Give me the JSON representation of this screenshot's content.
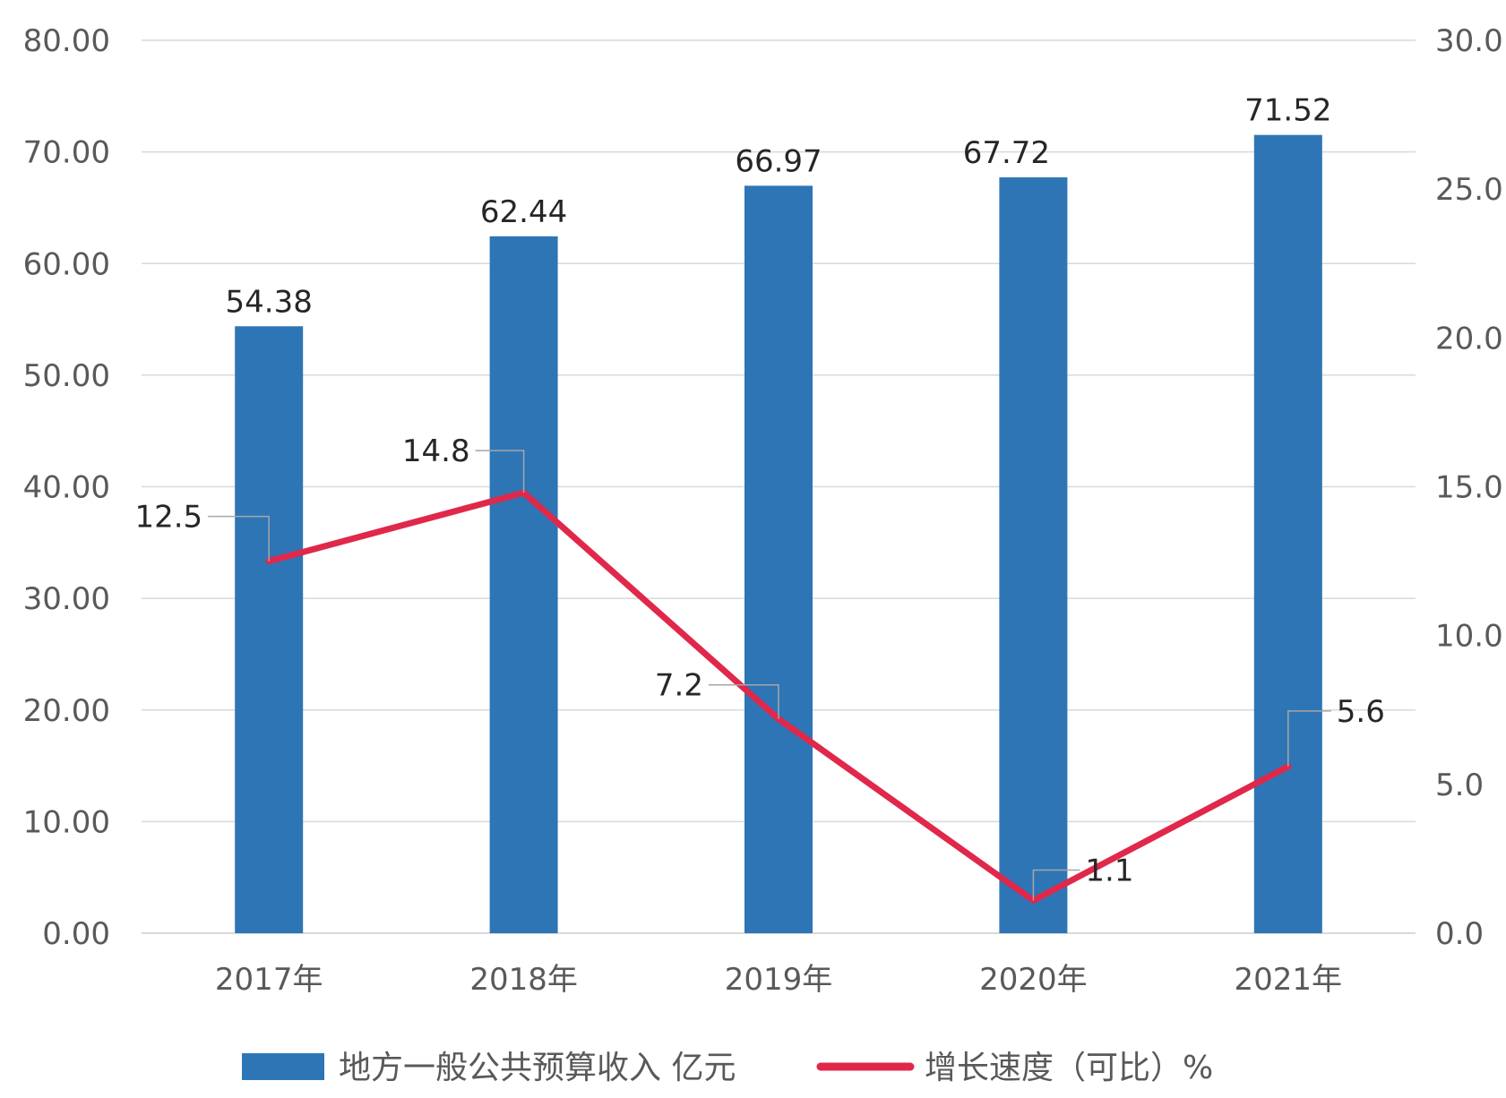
{
  "chart_data": {
    "type": "bar",
    "categories": [
      "2017年",
      "2018年",
      "2019年",
      "2020年",
      "2021年"
    ],
    "series": [
      {
        "name": "地方一般公共预算收入 亿元",
        "type": "bar",
        "axis": "left",
        "values": [
          54.38,
          62.44,
          66.97,
          67.72,
          71.52
        ],
        "labels": [
          "54.38",
          "62.44",
          "66.97",
          "67.72",
          "71.52"
        ],
        "color": "#2E75B6"
      },
      {
        "name": "增长速度（可比）%",
        "type": "line",
        "axis": "right",
        "values": [
          12.5,
          14.8,
          7.2,
          1.1,
          5.6
        ],
        "labels": [
          "12.5",
          "14.8",
          "7.2",
          "1.1",
          "5.6"
        ],
        "color": "#E0284A"
      }
    ],
    "y_left": {
      "min": 0,
      "max": 80,
      "ticks": [
        "0.00",
        "10.00",
        "20.00",
        "30.00",
        "40.00",
        "50.00",
        "60.00",
        "70.00",
        "80.00"
      ]
    },
    "y_right": {
      "min": 0,
      "max": 30,
      "ticks": [
        "0.0",
        "5.0",
        "10.0",
        "15.0",
        "20.0",
        "25.0",
        "30.0"
      ]
    },
    "grid": true,
    "legend_position": "bottom",
    "legend": [
      "地方一般公共预算收入 亿元",
      "增长速度（可比）%"
    ],
    "gridline_color": "#D9D9D9"
  }
}
